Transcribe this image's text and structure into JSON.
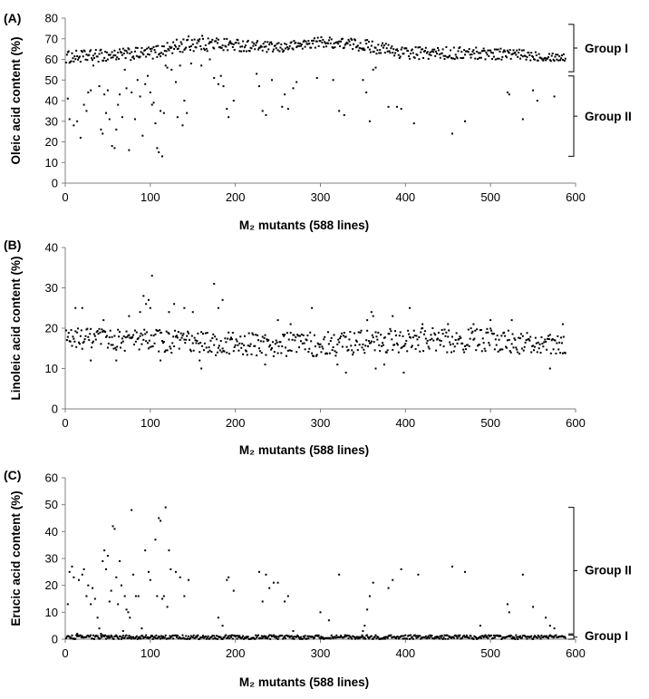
{
  "chart_data": [
    {
      "type": "scatter",
      "panel_label": "(A)",
      "xlabel": "M₂ mutants (588 lines)",
      "ylabel": "Oleic acid content (%)",
      "xlim": [
        0,
        600
      ],
      "ylim": [
        0,
        80
      ],
      "xticks": [
        0,
        100,
        200,
        300,
        400,
        500,
        600
      ],
      "yticks": [
        0,
        10,
        20,
        30,
        40,
        50,
        60,
        70,
        80
      ],
      "groups": [
        {
          "label": "Group I",
          "range": [
            54,
            77
          ]
        },
        {
          "label": "Group II",
          "range": [
            13,
            52
          ]
        }
      ],
      "main_band": {
        "lines": 588,
        "segments": [
          [
            0,
            58,
            64
          ],
          [
            100,
            60,
            66
          ],
          [
            150,
            64,
            72
          ],
          [
            200,
            64,
            70
          ],
          [
            250,
            63,
            68
          ],
          [
            300,
            66,
            71
          ],
          [
            350,
            64,
            70
          ],
          [
            400,
            60,
            66
          ],
          [
            500,
            60,
            66
          ],
          [
            588,
            59,
            63
          ]
        ]
      },
      "outliers": [
        [
          3,
          41
        ],
        [
          5,
          31
        ],
        [
          10,
          28
        ],
        [
          14,
          30
        ],
        [
          18,
          22
        ],
        [
          22,
          38
        ],
        [
          25,
          35
        ],
        [
          27,
          44
        ],
        [
          30,
          45
        ],
        [
          33,
          57
        ],
        [
          40,
          47
        ],
        [
          42,
          26
        ],
        [
          44,
          24
        ],
        [
          46,
          43
        ],
        [
          48,
          34
        ],
        [
          50,
          45
        ],
        [
          52,
          31
        ],
        [
          55,
          18
        ],
        [
          58,
          17
        ],
        [
          60,
          26
        ],
        [
          62,
          38
        ],
        [
          64,
          43
        ],
        [
          67,
          32
        ],
        [
          70,
          55
        ],
        [
          72,
          46
        ],
        [
          75,
          16
        ],
        [
          78,
          44
        ],
        [
          82,
          31
        ],
        [
          85,
          50
        ],
        [
          88,
          42
        ],
        [
          91,
          23
        ],
        [
          94,
          48
        ],
        [
          97,
          52
        ],
        [
          100,
          44
        ],
        [
          102,
          38
        ],
        [
          104,
          39
        ],
        [
          106,
          29
        ],
        [
          108,
          17
        ],
        [
          110,
          15
        ],
        [
          112,
          35
        ],
        [
          114,
          13
        ],
        [
          116,
          34
        ],
        [
          118,
          57
        ],
        [
          120,
          56
        ],
        [
          125,
          55
        ],
        [
          130,
          49
        ],
        [
          132,
          32
        ],
        [
          135,
          57
        ],
        [
          138,
          28
        ],
        [
          140,
          40
        ],
        [
          143,
          34
        ],
        [
          148,
          58
        ],
        [
          160,
          57
        ],
        [
          170,
          60
        ],
        [
          175,
          51
        ],
        [
          180,
          48
        ],
        [
          183,
          52
        ],
        [
          186,
          47
        ],
        [
          190,
          36
        ],
        [
          192,
          32
        ],
        [
          198,
          40
        ],
        [
          225,
          53
        ],
        [
          228,
          47
        ],
        [
          232,
          35
        ],
        [
          236,
          33
        ],
        [
          243,
          50
        ],
        [
          255,
          37
        ],
        [
          258,
          43
        ],
        [
          262,
          36
        ],
        [
          268,
          46
        ],
        [
          272,
          49
        ],
        [
          296,
          51
        ],
        [
          315,
          50
        ],
        [
          322,
          35
        ],
        [
          328,
          33
        ],
        [
          350,
          50
        ],
        [
          354,
          44
        ],
        [
          358,
          30
        ],
        [
          362,
          55
        ],
        [
          365,
          56
        ],
        [
          380,
          37
        ],
        [
          390,
          37
        ],
        [
          395,
          36
        ],
        [
          410,
          29
        ],
        [
          455,
          24
        ],
        [
          470,
          30
        ],
        [
          520,
          44
        ],
        [
          522,
          43
        ],
        [
          538,
          31
        ],
        [
          550,
          45
        ],
        [
          555,
          40
        ],
        [
          575,
          42
        ]
      ]
    },
    {
      "type": "scatter",
      "panel_label": "(B)",
      "xlabel": "M₂ mutants (588 lines)",
      "ylabel": "Linoleic acid content (%)",
      "xlim": [
        0,
        600
      ],
      "ylim": [
        0,
        40
      ],
      "xticks": [
        0,
        100,
        200,
        300,
        400,
        500,
        600
      ],
      "yticks": [
        0,
        10,
        20,
        30,
        40
      ],
      "main_band": {
        "lines": 588,
        "segments": [
          [
            0,
            15,
            20
          ],
          [
            100,
            14,
            20
          ],
          [
            200,
            13,
            19
          ],
          [
            300,
            13,
            19
          ],
          [
            400,
            14,
            20
          ],
          [
            500,
            14,
            20
          ],
          [
            588,
            13,
            18
          ]
        ]
      },
      "outliers": [
        [
          12,
          25
        ],
        [
          20,
          25
        ],
        [
          30,
          12
        ],
        [
          45,
          22
        ],
        [
          60,
          12
        ],
        [
          75,
          23
        ],
        [
          88,
          24
        ],
        [
          92,
          28
        ],
        [
          95,
          26
        ],
        [
          98,
          27
        ],
        [
          100,
          25
        ],
        [
          102,
          33
        ],
        [
          112,
          12
        ],
        [
          122,
          24
        ],
        [
          128,
          26
        ],
        [
          140,
          25
        ],
        [
          150,
          24
        ],
        [
          158,
          12
        ],
        [
          160,
          10
        ],
        [
          175,
          31
        ],
        [
          180,
          25
        ],
        [
          185,
          27
        ],
        [
          235,
          11
        ],
        [
          250,
          22
        ],
        [
          265,
          21
        ],
        [
          290,
          25
        ],
        [
          320,
          11
        ],
        [
          330,
          9
        ],
        [
          355,
          22
        ],
        [
          360,
          24
        ],
        [
          362,
          23
        ],
        [
          365,
          10
        ],
        [
          375,
          11
        ],
        [
          385,
          23
        ],
        [
          398,
          9
        ],
        [
          405,
          25
        ],
        [
          420,
          21
        ],
        [
          450,
          21
        ],
        [
          480,
          21
        ],
        [
          500,
          22
        ],
        [
          525,
          22
        ],
        [
          570,
          10
        ],
        [
          585,
          21
        ]
      ]
    },
    {
      "type": "scatter",
      "panel_label": "(C)",
      "xlabel": "M₂ mutants (588 lines)",
      "ylabel": "Erucic acid content (%)",
      "xlim": [
        0,
        600
      ],
      "ylim": [
        0,
        60
      ],
      "xticks": [
        0,
        100,
        200,
        300,
        400,
        500,
        600
      ],
      "yticks": [
        0,
        10,
        20,
        30,
        40,
        50,
        60
      ],
      "groups": [
        {
          "label": "Group II",
          "range": [
            2,
            49
          ]
        },
        {
          "label": "Group I",
          "range": [
            0,
            1.5
          ]
        }
      ],
      "main_band": {
        "lines": 588,
        "segments": [
          [
            0,
            0,
            1.5
          ],
          [
            588,
            0,
            1.5
          ]
        ]
      },
      "outliers": [
        [
          3,
          13
        ],
        [
          5,
          25
        ],
        [
          8,
          27
        ],
        [
          10,
          23
        ],
        [
          14,
          2
        ],
        [
          16,
          22
        ],
        [
          20,
          24
        ],
        [
          22,
          26
        ],
        [
          25,
          16
        ],
        [
          27,
          20
        ],
        [
          30,
          13
        ],
        [
          32,
          19
        ],
        [
          35,
          15
        ],
        [
          38,
          8
        ],
        [
          40,
          4
        ],
        [
          42,
          2
        ],
        [
          44,
          29
        ],
        [
          46,
          33
        ],
        [
          48,
          26
        ],
        [
          50,
          31
        ],
        [
          52,
          14
        ],
        [
          54,
          18
        ],
        [
          56,
          42
        ],
        [
          58,
          41
        ],
        [
          60,
          23
        ],
        [
          62,
          13
        ],
        [
          64,
          29
        ],
        [
          66,
          20
        ],
        [
          68,
          3
        ],
        [
          70,
          16
        ],
        [
          72,
          11
        ],
        [
          74,
          10
        ],
        [
          76,
          8
        ],
        [
          78,
          48
        ],
        [
          80,
          24
        ],
        [
          83,
          16
        ],
        [
          86,
          16
        ],
        [
          90,
          4
        ],
        [
          94,
          33
        ],
        [
          98,
          25
        ],
        [
          100,
          22
        ],
        [
          102,
          1
        ],
        [
          106,
          37
        ],
        [
          108,
          16
        ],
        [
          110,
          45
        ],
        [
          112,
          44
        ],
        [
          114,
          15
        ],
        [
          116,
          16
        ],
        [
          118,
          49
        ],
        [
          120,
          12
        ],
        [
          122,
          33
        ],
        [
          124,
          26
        ],
        [
          130,
          25
        ],
        [
          135,
          23
        ],
        [
          140,
          16
        ],
        [
          145,
          22
        ],
        [
          180,
          8
        ],
        [
          185,
          5
        ],
        [
          190,
          22
        ],
        [
          192,
          23
        ],
        [
          198,
          18
        ],
        [
          228,
          25
        ],
        [
          232,
          14
        ],
        [
          236,
          24
        ],
        [
          240,
          19
        ],
        [
          245,
          21
        ],
        [
          250,
          21
        ],
        [
          258,
          14
        ],
        [
          262,
          16
        ],
        [
          268,
          3
        ],
        [
          300,
          10
        ],
        [
          310,
          7
        ],
        [
          322,
          24
        ],
        [
          350,
          3
        ],
        [
          352,
          5
        ],
        [
          355,
          11
        ],
        [
          358,
          16
        ],
        [
          362,
          21
        ],
        [
          380,
          19
        ],
        [
          385,
          22
        ],
        [
          395,
          26
        ],
        [
          415,
          24
        ],
        [
          455,
          27
        ],
        [
          470,
          25
        ],
        [
          488,
          5
        ],
        [
          520,
          13
        ],
        [
          522,
          10
        ],
        [
          538,
          24
        ],
        [
          550,
          12
        ],
        [
          565,
          8
        ],
        [
          570,
          5
        ],
        [
          575,
          4
        ]
      ]
    }
  ]
}
